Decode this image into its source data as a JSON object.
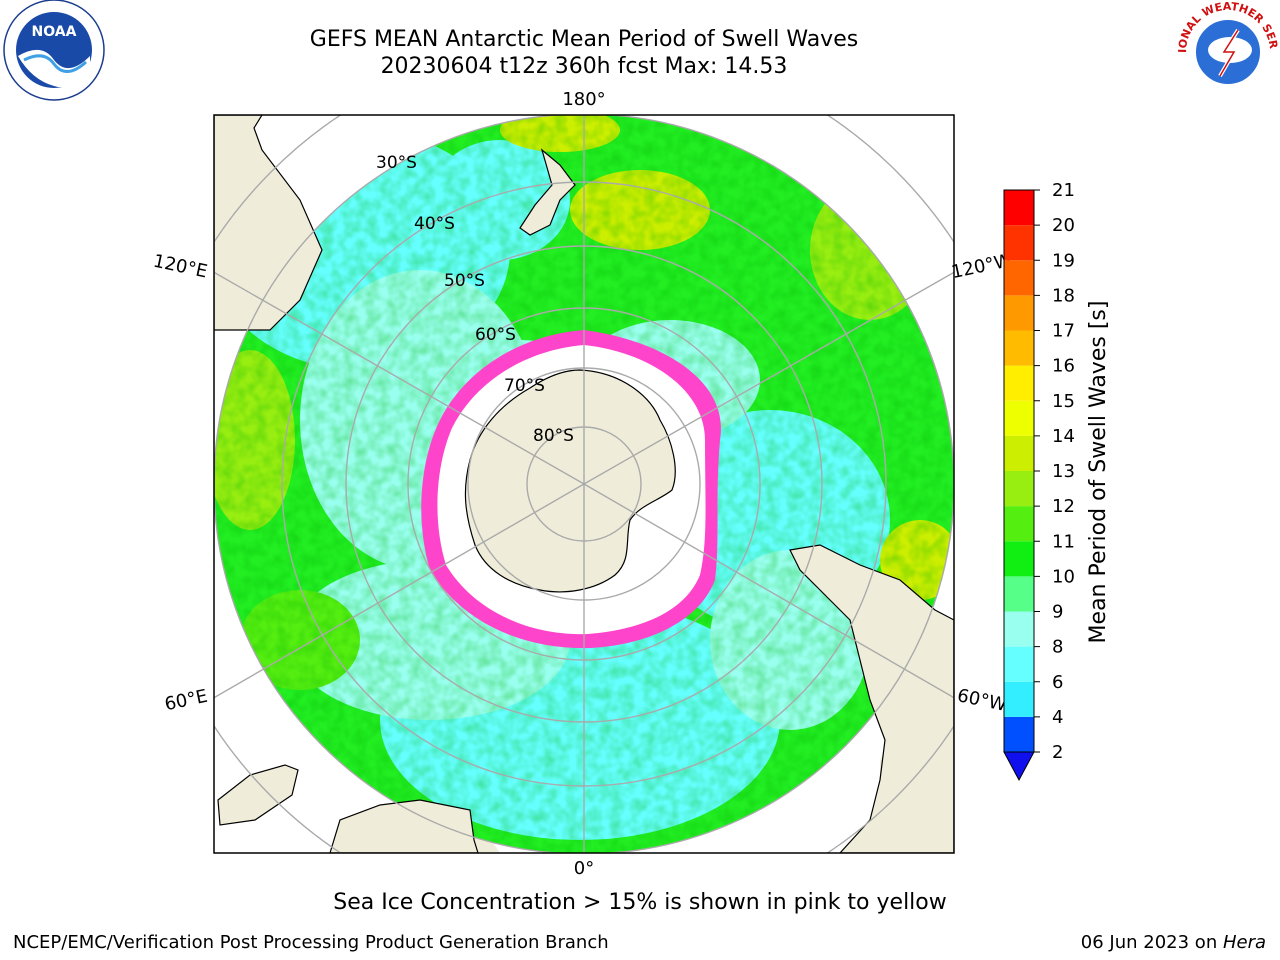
{
  "header": {
    "title_line1": "GEFS MEAN Antarctic Mean Period of Swell Waves",
    "title_line2": "20230604 t12z 360h fcst   Max: 14.53"
  },
  "map": {
    "projection": "south-polar-stereographic",
    "longitude_labels": {
      "top": "180°",
      "bottom": "0°",
      "left_upper": "120°E",
      "left_lower": "60°E",
      "right_upper": "120°W",
      "right_lower": "60°W"
    },
    "latitude_labels": [
      "30°S",
      "40°S",
      "50°S",
      "60°S",
      "70°S",
      "80°S"
    ],
    "land_color": "#efedda",
    "ice_free_interior_color": "#ffffff",
    "sea_ice_edge_colors": [
      "#ff33cc",
      "#ffaa00",
      "#ffee00"
    ]
  },
  "colorbar": {
    "label": "Mean Period of Swell Waves [s]",
    "ticks": [
      "2",
      "4",
      "6",
      "8",
      "9",
      "10",
      "11",
      "12",
      "13",
      "14",
      "15",
      "16",
      "17",
      "18",
      "19",
      "20",
      "21"
    ],
    "colors": [
      "#0050ff",
      "#00c8ff",
      "#33eeff",
      "#66ffff",
      "#99ffee",
      "#55ff88",
      "#11ee11",
      "#55ee11",
      "#99ee11",
      "#ccee00",
      "#eeff00",
      "#ffee00",
      "#ffbb00",
      "#ff9900",
      "#ff6600",
      "#ff3300",
      "#ff0000"
    ],
    "extend_below_color": "#1010ee"
  },
  "caption": "Sea Ice Concentration > 15% is shown in pink to yellow",
  "footer": {
    "credit": "NCEP/EMC/Verification Post Processing Product Generation Branch",
    "date_text": "06 Jun 2023 on ",
    "machine": "Hera"
  },
  "logos": {
    "noaa_text": "NOAA",
    "nws_text": "NATIONAL WEATHER SERVICE"
  }
}
